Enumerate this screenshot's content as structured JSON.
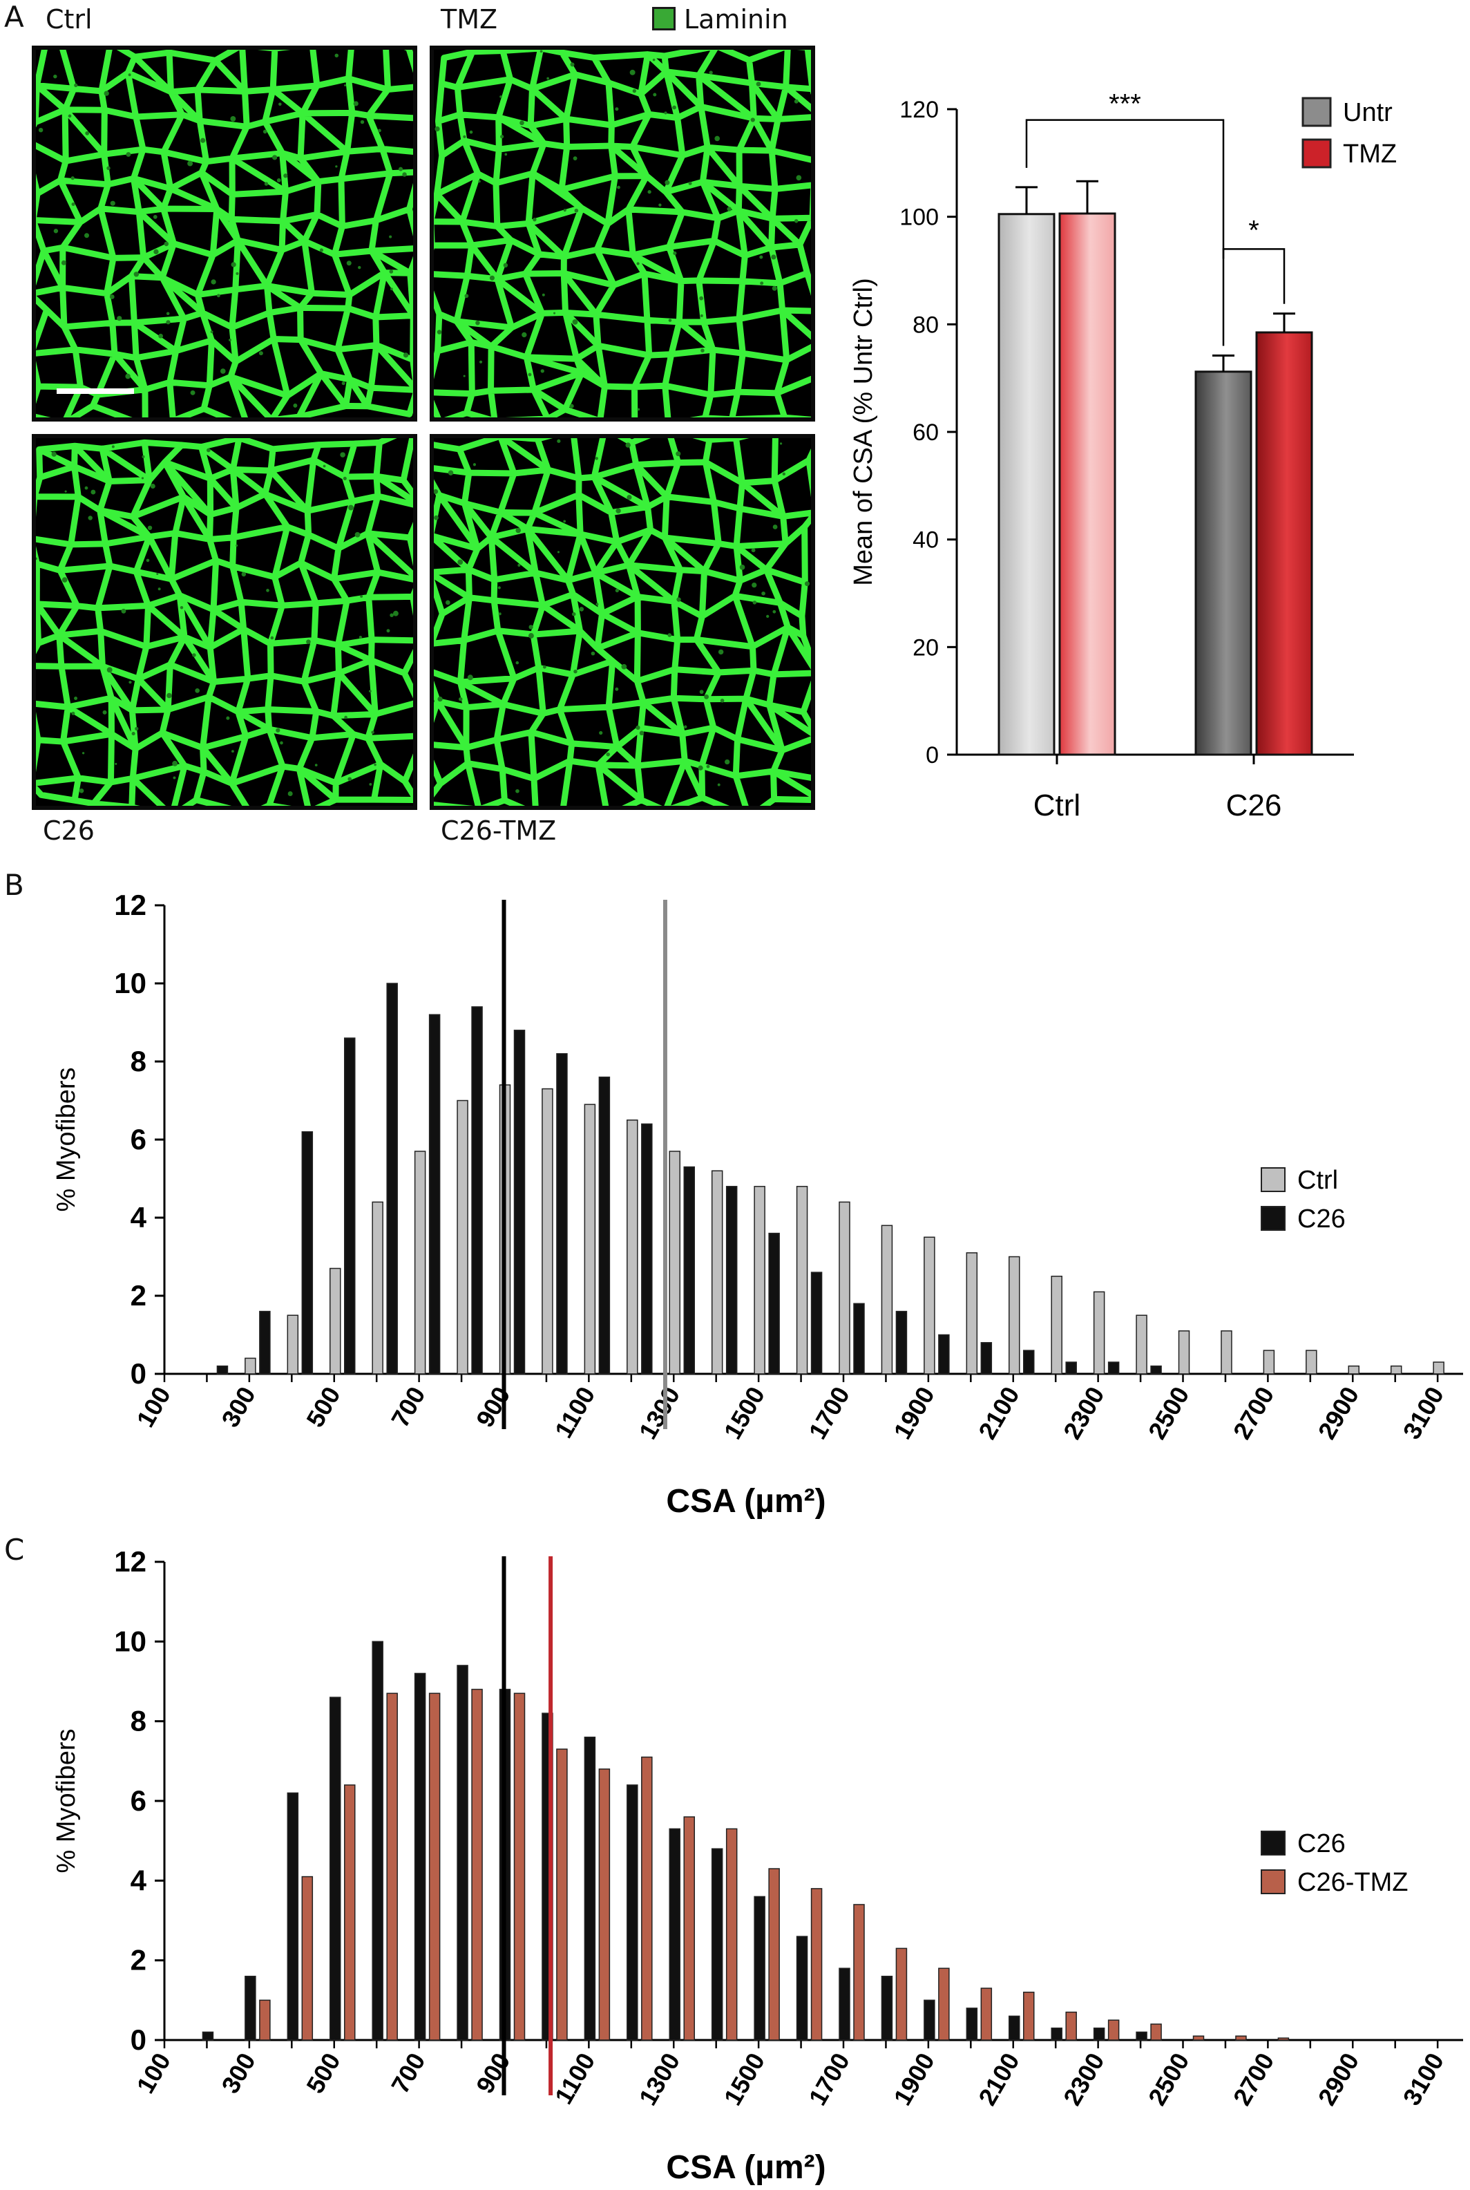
{
  "panel_a": {
    "letter": "A",
    "micrographs": [
      {
        "label": "Ctrl",
        "seed": 11
      },
      {
        "label": "TMZ",
        "seed": 23
      },
      {
        "label": "C26",
        "seed": 37
      },
      {
        "label": "C26-TMZ",
        "seed": 53
      }
    ],
    "stain_legend": {
      "label": "Laminin",
      "color": "#39a935"
    }
  },
  "panel_b": {
    "letter": "B"
  },
  "panel_c": {
    "letter": "C"
  },
  "chart_data": [
    {
      "type": "bar",
      "panel": "A",
      "ylabel": "Mean of CSA (% Untr Ctrl)",
      "ylim": [
        0,
        120
      ],
      "yticks": [
        0,
        20,
        40,
        60,
        80,
        100,
        120
      ],
      "categories": [
        "Ctrl",
        "C26"
      ],
      "series": [
        {
          "name": "Untr",
          "values": [
            100.5,
            71.2
          ],
          "errors": [
            5,
            3
          ],
          "color": "#8c8c8c"
        },
        {
          "name": "TMZ",
          "values": [
            100.6,
            78.5
          ],
          "errors": [
            6,
            3.5
          ],
          "color": "#cc2229"
        }
      ],
      "significance": [
        {
          "label": "***",
          "between": "Untr Ctrl vs Untr C26"
        },
        {
          "label": "*",
          "between": "Untr C26 vs TMZ C26"
        }
      ],
      "legend": "top-right"
    },
    {
      "type": "bar",
      "panel": "B",
      "ylabel": "% Myofibers",
      "xlabel": "CSA (µm²)",
      "ylim": [
        0,
        12
      ],
      "yticks": [
        0,
        2,
        4,
        6,
        8,
        10,
        12
      ],
      "bins": [
        100,
        200,
        300,
        400,
        500,
        600,
        700,
        800,
        900,
        1000,
        1100,
        1200,
        1300,
        1400,
        1500,
        1600,
        1700,
        1800,
        1900,
        2000,
        2100,
        2200,
        2300,
        2400,
        2500,
        2600,
        2700,
        2800,
        2900,
        3000,
        3100
      ],
      "xtick_labels": [
        "100",
        "300",
        "500",
        "700",
        "900",
        "1100",
        "1300",
        "1500",
        "1700",
        "1900",
        "2100",
        "2300",
        "2500",
        "2700",
        "2900",
        "3100"
      ],
      "series": [
        {
          "name": "Ctrl",
          "color": "#c0c0c0",
          "values": [
            0,
            0,
            0.4,
            1.5,
            2.7,
            4.4,
            5.7,
            7.0,
            7.4,
            7.3,
            6.9,
            6.5,
            5.7,
            5.2,
            4.8,
            4.8,
            4.4,
            3.8,
            3.5,
            3.1,
            3.0,
            2.5,
            2.1,
            1.5,
            1.1,
            1.1,
            0.6,
            0.6,
            0.2,
            0.2,
            0.3
          ]
        },
        {
          "name": "C26",
          "color": "#111111",
          "values": [
            0,
            0.2,
            1.6,
            6.2,
            8.6,
            10.0,
            9.2,
            9.4,
            8.8,
            8.2,
            7.6,
            6.4,
            5.3,
            4.8,
            3.6,
            2.6,
            1.8,
            1.6,
            1.0,
            0.8,
            0.6,
            0.3,
            0.3,
            0.2,
            0,
            0,
            0,
            0,
            0,
            0,
            0
          ]
        }
      ],
      "reference_lines": [
        {
          "x": 900,
          "color": "#000000"
        },
        {
          "x": 1280,
          "color": "#8a8a8a"
        }
      ],
      "legend": "right"
    },
    {
      "type": "bar",
      "panel": "C",
      "ylabel": "% Myofibers",
      "xlabel": "CSA (µm²)",
      "ylim": [
        0,
        12
      ],
      "yticks": [
        0,
        2,
        4,
        6,
        8,
        10,
        12
      ],
      "bins": [
        100,
        200,
        300,
        400,
        500,
        600,
        700,
        800,
        900,
        1000,
        1100,
        1200,
        1300,
        1400,
        1500,
        1600,
        1700,
        1800,
        1900,
        2000,
        2100,
        2200,
        2300,
        2400,
        2500,
        2600,
        2700,
        2800,
        2900,
        3000,
        3100
      ],
      "xtick_labels": [
        "100",
        "300",
        "500",
        "700",
        "900",
        "1100",
        "1300",
        "1500",
        "1700",
        "1900",
        "2100",
        "2300",
        "2500",
        "2700",
        "2900",
        "3100"
      ],
      "series": [
        {
          "name": "C26",
          "color": "#111111",
          "values": [
            0,
            0.2,
            1.6,
            6.2,
            8.6,
            10.0,
            9.2,
            9.4,
            8.8,
            8.2,
            7.6,
            6.4,
            5.3,
            4.8,
            3.6,
            2.6,
            1.8,
            1.6,
            1.0,
            0.8,
            0.6,
            0.3,
            0.3,
            0.2,
            0,
            0,
            0,
            0,
            0,
            0,
            0
          ]
        },
        {
          "name": "C26-TMZ",
          "color": "#b8604a",
          "values": [
            0,
            0,
            1.0,
            4.1,
            6.4,
            8.7,
            8.7,
            8.8,
            8.7,
            7.3,
            6.8,
            7.1,
            5.6,
            5.3,
            4.3,
            3.8,
            3.4,
            2.3,
            1.8,
            1.3,
            1.2,
            0.7,
            0.5,
            0.4,
            0.1,
            0.1,
            0.05,
            0,
            0,
            0,
            0
          ]
        }
      ],
      "reference_lines": [
        {
          "x": 900,
          "color": "#000000"
        },
        {
          "x": 1010,
          "color": "#c0272d"
        }
      ],
      "legend": "right"
    }
  ]
}
